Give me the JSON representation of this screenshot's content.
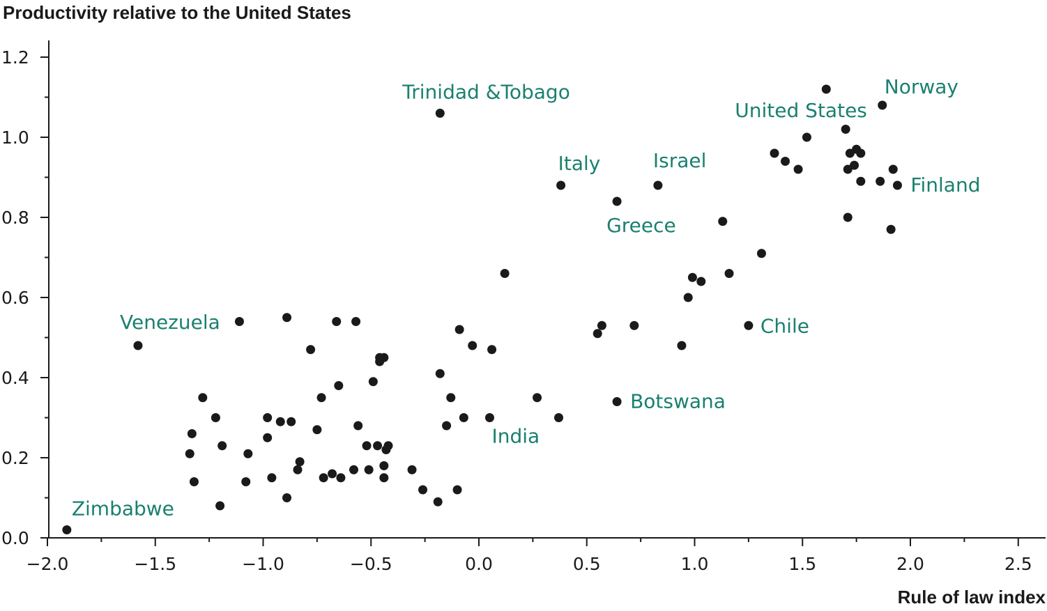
{
  "chart_data": {
    "type": "scatter",
    "title": "",
    "ylabel": "Productivity relative to the United States",
    "xlabel": "Rule of law index",
    "xlim": [
      -2.0,
      2.6
    ],
    "ylim": [
      0.0,
      1.25
    ],
    "x_ticks": [
      -2.0,
      -1.5,
      -1.0,
      -0.5,
      0.0,
      0.5,
      1.0,
      1.5,
      2.0,
      2.5
    ],
    "x_tick_labels": [
      "−2.0",
      "−1.5",
      "−1.0",
      "−0.5",
      "0.0",
      "0.5",
      "1.0",
      "1.5",
      "2.0",
      "2.5"
    ],
    "y_ticks": [
      0.0,
      0.2,
      0.4,
      0.6,
      0.8,
      1.0,
      1.2
    ],
    "y_tick_labels": [
      "0.0",
      "0.2",
      "0.4",
      "0.6",
      "0.8",
      "1.0",
      "1.2"
    ],
    "grid": false,
    "legend": "none",
    "annotations": [
      {
        "text": "Trinidad &Tobago",
        "x": -0.18,
        "y": 1.06
      },
      {
        "text": "Norway",
        "x": 1.87,
        "y": 1.08
      },
      {
        "text": "United States",
        "x": 1.61,
        "y": 1.12
      },
      {
        "text": "Italy",
        "x": 0.38,
        "y": 0.88
      },
      {
        "text": "Israel",
        "x": 0.83,
        "y": 0.88
      },
      {
        "text": "Finland",
        "x": 1.94,
        "y": 0.88
      },
      {
        "text": "Greece",
        "x": 0.64,
        "y": 0.84
      },
      {
        "text": "Venezuela",
        "x": -1.58,
        "y": 0.48
      },
      {
        "text": "Chile",
        "x": 1.25,
        "y": 0.53
      },
      {
        "text": "Botswana",
        "x": 0.64,
        "y": 0.34
      },
      {
        "text": "India",
        "x": 0.05,
        "y": 0.3
      },
      {
        "text": "Zimbabwe",
        "x": -1.91,
        "y": 0.02
      }
    ],
    "points": [
      {
        "x": -1.91,
        "y": 0.02
      },
      {
        "x": -1.58,
        "y": 0.48
      },
      {
        "x": -1.33,
        "y": 0.26
      },
      {
        "x": -1.34,
        "y": 0.21
      },
      {
        "x": -1.32,
        "y": 0.14
      },
      {
        "x": -1.28,
        "y": 0.35
      },
      {
        "x": -1.22,
        "y": 0.3
      },
      {
        "x": -1.19,
        "y": 0.23
      },
      {
        "x": -1.2,
        "y": 0.08
      },
      {
        "x": -1.11,
        "y": 0.54
      },
      {
        "x": -1.07,
        "y": 0.21
      },
      {
        "x": -1.08,
        "y": 0.14
      },
      {
        "x": -0.98,
        "y": 0.3
      },
      {
        "x": -0.98,
        "y": 0.25
      },
      {
        "x": -0.96,
        "y": 0.15
      },
      {
        "x": -0.92,
        "y": 0.29
      },
      {
        "x": -0.89,
        "y": 0.55
      },
      {
        "x": -0.89,
        "y": 0.1
      },
      {
        "x": -0.87,
        "y": 0.29
      },
      {
        "x": -0.84,
        "y": 0.17
      },
      {
        "x": -0.83,
        "y": 0.19
      },
      {
        "x": -0.78,
        "y": 0.47
      },
      {
        "x": -0.75,
        "y": 0.27
      },
      {
        "x": -0.73,
        "y": 0.35
      },
      {
        "x": -0.72,
        "y": 0.15
      },
      {
        "x": -0.68,
        "y": 0.16
      },
      {
        "x": -0.66,
        "y": 0.54
      },
      {
        "x": -0.65,
        "y": 0.38
      },
      {
        "x": -0.64,
        "y": 0.15
      },
      {
        "x": -0.58,
        "y": 0.17
      },
      {
        "x": -0.57,
        "y": 0.54
      },
      {
        "x": -0.56,
        "y": 0.28
      },
      {
        "x": -0.52,
        "y": 0.23
      },
      {
        "x": -0.51,
        "y": 0.17
      },
      {
        "x": -0.49,
        "y": 0.39
      },
      {
        "x": -0.47,
        "y": 0.23
      },
      {
        "x": -0.46,
        "y": 0.45
      },
      {
        "x": -0.46,
        "y": 0.44
      },
      {
        "x": -0.44,
        "y": 0.45
      },
      {
        "x": -0.44,
        "y": 0.18
      },
      {
        "x": -0.44,
        "y": 0.15
      },
      {
        "x": -0.43,
        "y": 0.22
      },
      {
        "x": -0.42,
        "y": 0.23
      },
      {
        "x": -0.31,
        "y": 0.17
      },
      {
        "x": -0.26,
        "y": 0.12
      },
      {
        "x": -0.19,
        "y": 0.09
      },
      {
        "x": -0.18,
        "y": 1.06
      },
      {
        "x": -0.18,
        "y": 0.41
      },
      {
        "x": -0.15,
        "y": 0.28
      },
      {
        "x": -0.13,
        "y": 0.35
      },
      {
        "x": -0.1,
        "y": 0.12
      },
      {
        "x": -0.09,
        "y": 0.52
      },
      {
        "x": -0.07,
        "y": 0.3
      },
      {
        "x": -0.03,
        "y": 0.48
      },
      {
        "x": 0.05,
        "y": 0.3
      },
      {
        "x": 0.06,
        "y": 0.47
      },
      {
        "x": 0.12,
        "y": 0.66
      },
      {
        "x": 0.27,
        "y": 0.35
      },
      {
        "x": 0.37,
        "y": 0.3
      },
      {
        "x": 0.38,
        "y": 0.88
      },
      {
        "x": 0.55,
        "y": 0.51
      },
      {
        "x": 0.57,
        "y": 0.53
      },
      {
        "x": 0.64,
        "y": 0.84
      },
      {
        "x": 0.64,
        "y": 0.34
      },
      {
        "x": 0.72,
        "y": 0.53
      },
      {
        "x": 0.83,
        "y": 0.88
      },
      {
        "x": 0.94,
        "y": 0.48
      },
      {
        "x": 0.97,
        "y": 0.6
      },
      {
        "x": 0.99,
        "y": 0.65
      },
      {
        "x": 1.03,
        "y": 0.64
      },
      {
        "x": 1.13,
        "y": 0.79
      },
      {
        "x": 1.16,
        "y": 0.66
      },
      {
        "x": 1.25,
        "y": 0.53
      },
      {
        "x": 1.31,
        "y": 0.71
      },
      {
        "x": 1.37,
        "y": 0.96
      },
      {
        "x": 1.42,
        "y": 0.94
      },
      {
        "x": 1.48,
        "y": 0.92
      },
      {
        "x": 1.52,
        "y": 1.0
      },
      {
        "x": 1.61,
        "y": 1.12
      },
      {
        "x": 1.7,
        "y": 1.02
      },
      {
        "x": 1.71,
        "y": 0.92
      },
      {
        "x": 1.71,
        "y": 0.8
      },
      {
        "x": 1.72,
        "y": 0.96
      },
      {
        "x": 1.74,
        "y": 0.93
      },
      {
        "x": 1.75,
        "y": 0.97
      },
      {
        "x": 1.77,
        "y": 0.96
      },
      {
        "x": 1.77,
        "y": 0.89
      },
      {
        "x": 1.86,
        "y": 0.89
      },
      {
        "x": 1.87,
        "y": 1.08
      },
      {
        "x": 1.91,
        "y": 0.77
      },
      {
        "x": 1.92,
        "y": 0.92
      },
      {
        "x": 1.94,
        "y": 0.88
      }
    ],
    "point_color": "#1a1a1a",
    "annotation_color": "#1a8070"
  }
}
